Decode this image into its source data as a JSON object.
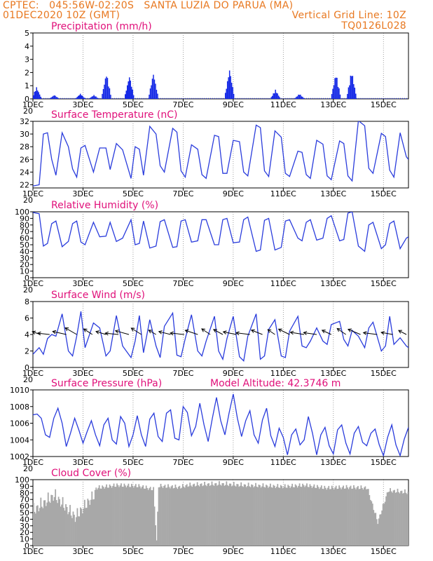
{
  "header": {
    "left1": "CPTEC:   045:56W-02:20S   SANTA LUZIA DO PARUA (MA)",
    "left2": "01DEC2020 10Z (GMT)",
    "right2": "Vertical Grid Line: 10Z",
    "right3": "TQ0126L028"
  },
  "colors": {
    "title": "#e0107a",
    "header": "#e87820",
    "line": "#2a3cdc",
    "cloud": "#a8a8a8"
  },
  "x_ticks": [
    "1DEC",
    "3DEC",
    "5DEC",
    "7DEC",
    "9DEC",
    "11DEC",
    "13DEC",
    "15DEC"
  ],
  "x_tick_partial": "20",
  "chart_data": [
    {
      "type": "bar",
      "id": "precip",
      "title": "Precipitation (mm/h)",
      "ylim": [
        0,
        5
      ],
      "yticks": [
        0,
        1,
        2,
        3,
        4,
        5
      ],
      "x_range_hours": [
        0,
        360
      ],
      "bursts": [
        {
          "at": 3,
          "peak": 0.9
        },
        {
          "at": 20,
          "peak": 0.3
        },
        {
          "at": 45,
          "peak": 0.4
        },
        {
          "at": 58,
          "peak": 0.3
        },
        {
          "at": 70,
          "peak": 2.0
        },
        {
          "at": 92,
          "peak": 1.8
        },
        {
          "at": 115,
          "peak": 2.0
        },
        {
          "at": 188,
          "peak": 2.3
        },
        {
          "at": 232,
          "peak": 0.7
        },
        {
          "at": 255,
          "peak": 0.4
        },
        {
          "at": 290,
          "peak": 2.0
        },
        {
          "at": 305,
          "peak": 2.2
        }
      ]
    },
    {
      "type": "line",
      "id": "temp",
      "title": "Surface Temperature (nC)",
      "ylim": [
        21.5,
        32
      ],
      "yticks": [
        22,
        24,
        26,
        28,
        30,
        32
      ],
      "x_hours": [
        0,
        6,
        10,
        14,
        18,
        22,
        28,
        34,
        38,
        42,
        46,
        50,
        58,
        64,
        70,
        74,
        80,
        86,
        94,
        98,
        102,
        106,
        112,
        118,
        122,
        126,
        134,
        138,
        142,
        146,
        152,
        158,
        162,
        166,
        174,
        178,
        182,
        186,
        192,
        198,
        202,
        206,
        214,
        218,
        222,
        226,
        232,
        238,
        242,
        246,
        254,
        258,
        262,
        266,
        272,
        278,
        282,
        286,
        294,
        298,
        302,
        306,
        312,
        318,
        322,
        326,
        334,
        338,
        342,
        346,
        352,
        358,
        360
      ],
      "values": [
        21.8,
        22,
        30,
        30.2,
        26,
        23.5,
        30.2,
        28,
        24.5,
        23.2,
        27.8,
        28.2,
        24,
        27.8,
        27.8,
        24.4,
        28.5,
        27.5,
        23,
        28,
        27.6,
        23.5,
        31.2,
        30,
        25,
        24,
        30.9,
        30.3,
        24.2,
        23.2,
        28.3,
        27.6,
        23.6,
        23,
        29.8,
        29.6,
        23.8,
        23.8,
        29,
        28.8,
        24,
        23.4,
        31.4,
        31,
        24.2,
        23.3,
        30.5,
        29.5,
        23.8,
        23.3,
        27.3,
        27.1,
        23.6,
        23,
        29,
        28.4,
        23.4,
        22.8,
        28.9,
        28.5,
        23.4,
        22.6,
        32.1,
        31.3,
        24.6,
        23.8,
        30.1,
        29.6,
        24.3,
        23.2,
        30.2,
        26.4,
        26
      ]
    },
    {
      "type": "line",
      "id": "rh",
      "title": "Relative Humidity (%)",
      "ylim": [
        0,
        100
      ],
      "yticks": [
        0,
        10,
        20,
        30,
        40,
        50,
        60,
        70,
        80,
        90,
        100
      ],
      "x_hours": [
        0,
        6,
        10,
        14,
        18,
        22,
        28,
        34,
        38,
        42,
        46,
        50,
        58,
        64,
        70,
        74,
        80,
        86,
        94,
        98,
        102,
        106,
        112,
        118,
        122,
        126,
        134,
        138,
        142,
        146,
        152,
        158,
        162,
        166,
        174,
        178,
        182,
        186,
        192,
        198,
        202,
        206,
        214,
        218,
        222,
        226,
        232,
        238,
        242,
        246,
        254,
        258,
        262,
        266,
        272,
        278,
        282,
        286,
        294,
        298,
        302,
        306,
        312,
        318,
        322,
        326,
        334,
        338,
        342,
        346,
        352,
        358,
        360
      ],
      "values": [
        99,
        97,
        48,
        52,
        82,
        86,
        47,
        55,
        82,
        86,
        54,
        50,
        84,
        62,
        63,
        84,
        55,
        60,
        88,
        50,
        52,
        86,
        45,
        48,
        85,
        88,
        46,
        47,
        86,
        88,
        54,
        56,
        88,
        88,
        50,
        50,
        88,
        90,
        53,
        54,
        88,
        92,
        40,
        42,
        87,
        90,
        42,
        46,
        86,
        88,
        60,
        56,
        84,
        88,
        57,
        60,
        90,
        94,
        56,
        58,
        98,
        100,
        48,
        40,
        80,
        84,
        44,
        50,
        82,
        86,
        44,
        60,
        62
      ]
    },
    {
      "type": "line",
      "id": "wind",
      "title": "Surface Wind (m/s)",
      "ylim": [
        0,
        8
      ],
      "yticks": [
        0,
        2,
        4,
        6,
        8
      ],
      "x_hours": [
        0,
        6,
        10,
        14,
        18,
        22,
        28,
        34,
        38,
        42,
        46,
        50,
        58,
        64,
        70,
        74,
        80,
        86,
        94,
        98,
        102,
        106,
        112,
        118,
        122,
        126,
        134,
        138,
        142,
        146,
        152,
        158,
        162,
        166,
        174,
        178,
        182,
        186,
        192,
        198,
        202,
        206,
        214,
        218,
        222,
        226,
        232,
        238,
        242,
        246,
        254,
        258,
        262,
        266,
        272,
        278,
        282,
        286,
        294,
        298,
        302,
        306,
        312,
        318,
        322,
        326,
        334,
        338,
        342,
        346,
        352,
        358,
        360
      ],
      "values": [
        1.6,
        2.4,
        1.6,
        3.5,
        4,
        3.8,
        6.5,
        2,
        1.4,
        3.8,
        6.8,
        2.4,
        5.4,
        4.8,
        1.4,
        2,
        6.3,
        2.6,
        1.2,
        3.2,
        6.3,
        1.8,
        5.8,
        2.6,
        1.2,
        5,
        6.6,
        1.5,
        1.3,
        3.5,
        6.4,
        2,
        1.4,
        3.2,
        6.2,
        2,
        1,
        3.5,
        6.2,
        1.3,
        0.8,
        3.8,
        6.5,
        1,
        1.4,
        4.6,
        5.8,
        1.4,
        1.2,
        4.4,
        6.2,
        2.6,
        2.4,
        3.2,
        4.8,
        3.2,
        2.8,
        5.2,
        5.6,
        3.4,
        2.6,
        4.5,
        3.8,
        2.4,
        4.8,
        5.5,
        2,
        2.6,
        6.2,
        2.8,
        3.6,
        2.6,
        2.4
      ],
      "arrows_hours": [
        7,
        16,
        32,
        42,
        57,
        70,
        82,
        92,
        104,
        118,
        132,
        145,
        158,
        170,
        182,
        195,
        208,
        220,
        232,
        246,
        260,
        272,
        286,
        300,
        314,
        330,
        345,
        358
      ]
    },
    {
      "type": "line",
      "id": "pressure",
      "title": "Surface Pressure (hPa)",
      "subtitle": "Model Altitude: 42.3746 m",
      "ylim": [
        1002,
        1010
      ],
      "yticks": [
        1002,
        1004,
        1006,
        1008,
        1010
      ],
      "x_hours": [
        0,
        4,
        8,
        12,
        16,
        20,
        24,
        28,
        32,
        36,
        40,
        44,
        48,
        52,
        56,
        60,
        64,
        68,
        72,
        76,
        80,
        84,
        88,
        92,
        96,
        100,
        104,
        108,
        112,
        116,
        120,
        124,
        128,
        132,
        136,
        140,
        144,
        148,
        152,
        156,
        160,
        164,
        168,
        172,
        176,
        180,
        184,
        188,
        192,
        196,
        200,
        204,
        208,
        212,
        216,
        220,
        224,
        228,
        232,
        236,
        240,
        244,
        248,
        252,
        256,
        260,
        264,
        268,
        272,
        276,
        280,
        284,
        288,
        292,
        296,
        300,
        304,
        308,
        312,
        316,
        320,
        324,
        328,
        332,
        336,
        340,
        344,
        348,
        352,
        356,
        360
      ],
      "values": [
        1007,
        1007.1,
        1006.6,
        1004.6,
        1004.3,
        1006.6,
        1007.8,
        1006,
        1003.2,
        1004.8,
        1006.6,
        1005.2,
        1003.6,
        1005,
        1006.3,
        1004.6,
        1003.3,
        1005.8,
        1006.6,
        1004,
        1003.5,
        1006.8,
        1006,
        1003.2,
        1004.6,
        1006.9,
        1004.6,
        1003.2,
        1006.5,
        1007.2,
        1004.4,
        1003.8,
        1007.2,
        1007.6,
        1004.2,
        1004,
        1008,
        1007.3,
        1004.5,
        1005.6,
        1008.4,
        1005.8,
        1003.8,
        1006.6,
        1009.1,
        1006.3,
        1004.6,
        1007.2,
        1009.5,
        1006.6,
        1004.4,
        1006.3,
        1007.5,
        1004.6,
        1003.6,
        1006.4,
        1007.8,
        1004.5,
        1003.2,
        1005.4,
        1004.3,
        1002.2,
        1004.6,
        1005.3,
        1003.4,
        1004,
        1006.8,
        1004.8,
        1002.2,
        1004.6,
        1005.5,
        1003.3,
        1002.3,
        1005.2,
        1005.8,
        1003.6,
        1002.3,
        1004.8,
        1005.6,
        1003.7,
        1003.3,
        1004.8,
        1005.3,
        1003.4,
        1002.1,
        1004.3,
        1005.8,
        1003.4,
        1002.1,
        1004.1,
        1005.5
      ]
    },
    {
      "type": "bar",
      "id": "cloud",
      "title": "Cloud Cover (%)",
      "ylim": [
        0,
        100
      ],
      "yticks": [
        0,
        10,
        20,
        30,
        40,
        50,
        60,
        70,
        80,
        90,
        100
      ],
      "x_range_hours": [
        0,
        360
      ],
      "level_hours": [
        0,
        20,
        40,
        60,
        80,
        100,
        115,
        118,
        120,
        140,
        148,
        160,
        180,
        200,
        220,
        240,
        260,
        280,
        300,
        320,
        330,
        340,
        360
      ],
      "levels": [
        65,
        88,
        55,
        92,
        96,
        95,
        90,
        12,
        95,
        93,
        96,
        97,
        98,
        96,
        95,
        94,
        96,
        92,
        93,
        92,
        40,
        88,
        85
      ]
    }
  ]
}
